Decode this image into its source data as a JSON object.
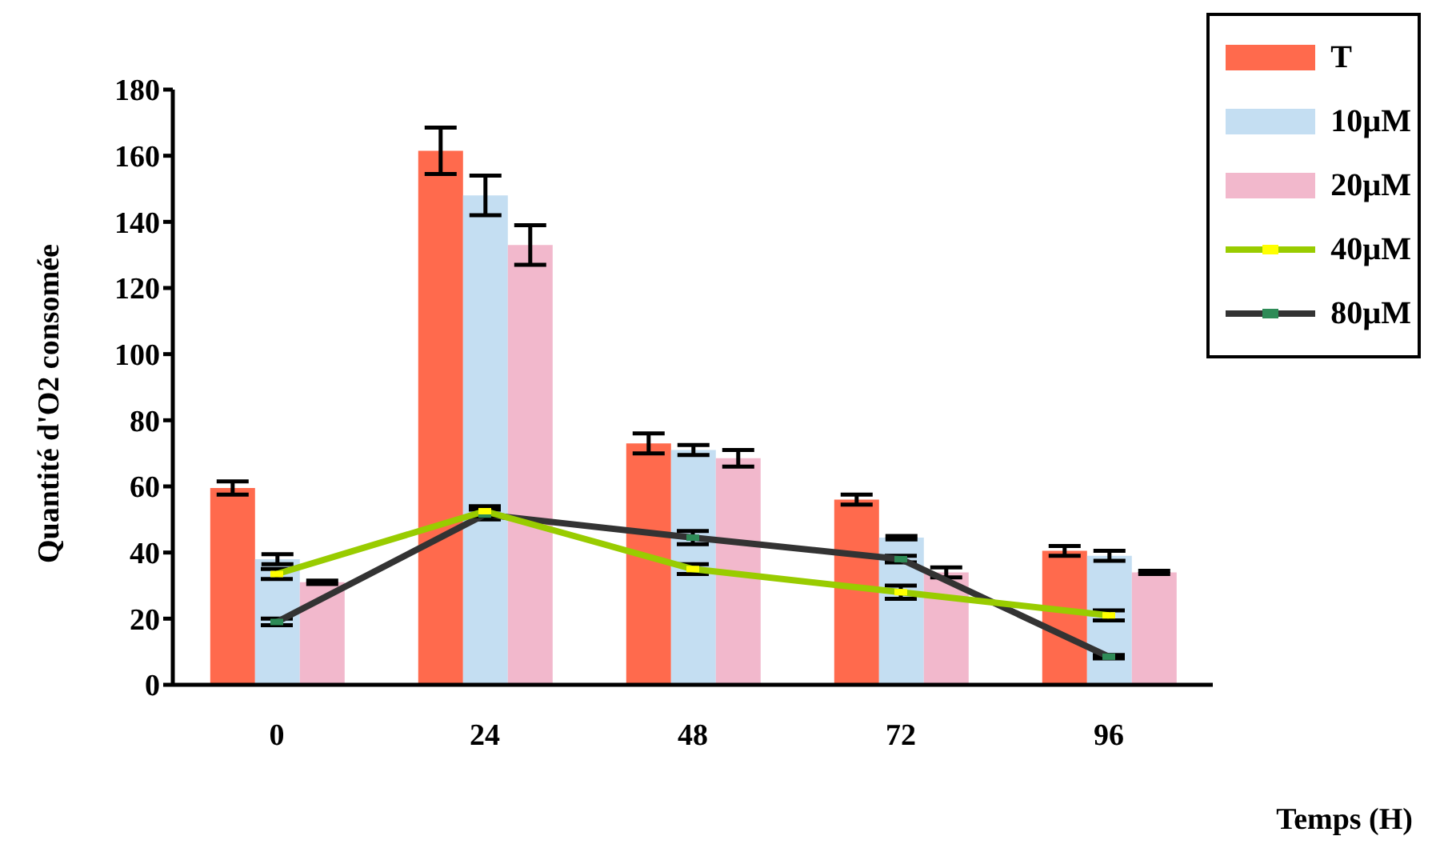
{
  "chart_data": {
    "type": "bar",
    "xlabel": "Temps (H)",
    "ylabel": "Quantité d'O2 consomée",
    "categories": [
      "0",
      "24",
      "48",
      "72",
      "96"
    ],
    "series": [
      {
        "name": "T",
        "color": "#ff6a4d",
        "values": [
          59.5,
          161.5,
          73,
          56,
          40.5
        ],
        "errors": [
          2,
          7,
          3,
          1.5,
          1.5
        ]
      },
      {
        "name": "10µM",
        "color": "#c4def2",
        "values": [
          38,
          148,
          71,
          44.5,
          39
        ],
        "errors": [
          1.5,
          6,
          1.5,
          0.5,
          1.5
        ]
      },
      {
        "name": "20µM",
        "color": "#f2b8cc",
        "values": [
          31,
          133,
          68.5,
          34,
          34
        ],
        "errors": [
          0.5,
          6,
          2.5,
          1.5,
          0.5
        ]
      },
      {
        "name": "40µM",
        "type": "line",
        "color": "#99cc00",
        "values": [
          33.5,
          52.5,
          35,
          28,
          21
        ],
        "errors": [
          1.5,
          1.5,
          1.5,
          2,
          1.5
        ]
      },
      {
        "name": "80µM",
        "type": "line",
        "color": "#333333",
        "values": [
          19,
          51.5,
          44.5,
          38,
          8.5
        ],
        "errors": [
          1,
          1.5,
          2,
          1,
          0.5
        ]
      }
    ],
    "ylim": [
      0,
      180
    ],
    "yticks": [
      0,
      20,
      40,
      60,
      80,
      100,
      120,
      140,
      160,
      180
    ],
    "grid": false,
    "legend": "top right",
    "marker": "square",
    "line_style": "solid"
  }
}
